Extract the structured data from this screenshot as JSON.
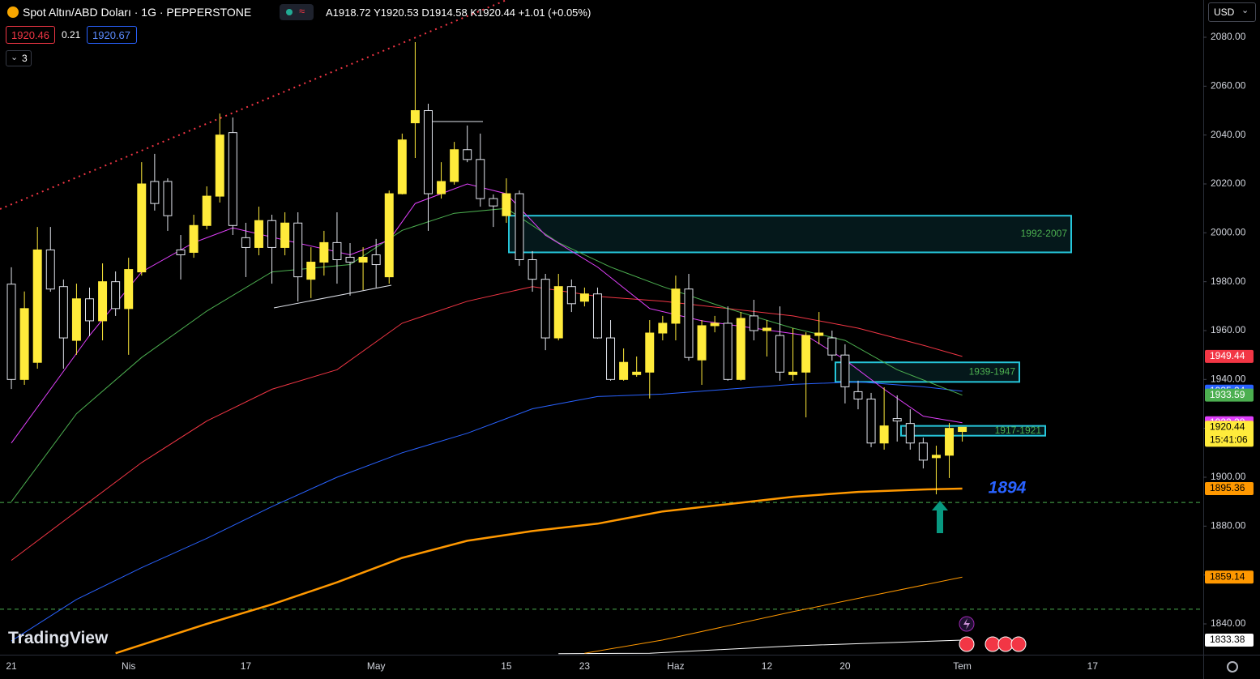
{
  "header": {
    "symbol": "Spot Altın/ABD Doları · 1G · PEPPERSTONE",
    "ohlc_keys": [
      "A",
      "Y",
      "D",
      "K"
    ],
    "change": "+1.01 (+0.05%)",
    "sell": 1920.46,
    "spread": 0.21,
    "buy": 1920.67,
    "indicators": 3,
    "currency": "USD",
    "watermark": "TradingView"
  },
  "chart_data": {
    "type": "candlestick",
    "categories": [
      "21",
      null,
      null,
      null,
      null,
      null,
      null,
      null,
      null,
      "Nis",
      null,
      null,
      null,
      null,
      null,
      null,
      null,
      null,
      "17",
      null,
      null,
      null,
      null,
      null,
      null,
      null,
      null,
      null,
      "May",
      null,
      null,
      null,
      null,
      null,
      null,
      null,
      null,
      null,
      "15",
      null,
      null,
      null,
      null,
      null,
      "23",
      null,
      null,
      null,
      null,
      null,
      null,
      "Haz",
      null,
      null,
      null,
      null,
      null,
      null,
      "12",
      null,
      null,
      null,
      null,
      null,
      "20",
      null,
      null,
      null,
      null,
      null,
      null,
      null,
      null,
      "Tem",
      null,
      null,
      null,
      null,
      null,
      null,
      null,
      null,
      null,
      "17",
      null,
      null,
      null,
      null,
      null,
      null,
      null,
      null
    ],
    "open": [
      1979,
      1940,
      1947,
      1993,
      1978,
      1956,
      1973,
      1964,
      1980,
      1969,
      1984,
      2021,
      2021,
      1993,
      1992,
      2003,
      2015,
      2041,
      1998,
      1994,
      2005,
      1994,
      2004,
      1981,
      1988,
      1996,
      1990,
      1988,
      1991,
      1982,
      2016,
      2045,
      2050,
      2016,
      2021,
      2034,
      2030,
      2014,
      2007,
      2016,
      1989,
      1981,
      1957,
      1978,
      1972,
      1975,
      1957,
      1940,
      1942,
      1943,
      1959,
      1963,
      1977,
      1948,
      1962,
      1963,
      1940,
      1966,
      1960,
      1958,
      1942,
      1943,
      1958,
      1957,
      1950,
      1935,
      1932,
      1914,
      1924,
      1922,
      1914,
      1908,
      1909,
      1918.72,
      null,
      null,
      null,
      null,
      null,
      null,
      null,
      null,
      null,
      null,
      null,
      null,
      null,
      null,
      null,
      null,
      null,
      null
    ],
    "high": [
      1985.9,
      1976,
      2002.4,
      2002.4,
      1980.9,
      1979.2,
      1977.6,
      1987.5,
      1984.2,
      1989.8,
      2028.9,
      2032.3,
      2022.3,
      1999.1,
      2007.4,
      2019,
      2048.8,
      2047.2,
      2004.1,
      2010.7,
      2007.4,
      2008.4,
      2008.4,
      1994.1,
      2000.8,
      2008.4,
      1995.8,
      1994.1,
      1997.5,
      2017.3,
      2040.6,
      2078,
      2052.8,
      2028.9,
      2037.2,
      2043.9,
      2040.6,
      2015.7,
      2022.3,
      2017.3,
      1992.5,
      1983.2,
      1983.2,
      1980.9,
      1977.6,
      1977.6,
      1964.3,
      1952.7,
      1949.4,
      1964.3,
      1966,
      1982.5,
      1983.2,
      1964.3,
      1966,
      1969.9,
      1967.6,
      1972.6,
      1964.3,
      1969.9,
      1961,
      1959.3,
      1967.6,
      1960,
      1954.4,
      1939.5,
      1934.5,
      1936.8,
      1933.5,
      1927.8,
      1916.2,
      1912.9,
      1922.2,
      1920.53,
      null,
      null,
      null,
      null,
      null,
      null,
      null,
      null,
      null,
      null,
      null,
      null,
      null,
      null,
      null,
      null,
      null,
      null
    ],
    "low": [
      1936.1,
      1937.8,
      1944.4,
      1975.9,
      1944.4,
      1950.1,
      1957.7,
      1956,
      1966,
      1950.1,
      1982.5,
      2009.1,
      2000.8,
      1980.9,
      1989.8,
      2001.4,
      2012.4,
      1999.1,
      1981.9,
      1990.8,
      1979.2,
      1990.8,
      1971.9,
      1973.3,
      1982.5,
      1979.2,
      1974.3,
      1976.6,
      1977.6,
      1979.2,
      2015.7,
      2030.6,
      2000.8,
      2014,
      2019.7,
      2028.9,
      2010.7,
      2002.4,
      2004.1,
      1986.5,
      1975.9,
      1952,
      1956,
      1967.6,
      1969.9,
      1956.7,
      1939.5,
      1939.5,
      1941.1,
      1932.2,
      1956,
      1956,
      1947.7,
      1937.8,
      1959.3,
      1939.5,
      1939.5,
      1956,
      1949.4,
      1939.5,
      1939.5,
      1924.5,
      1954.4,
      1947.7,
      1930.2,
      1927.8,
      1912.3,
      1911.3,
      1914.6,
      1911.3,
      1903.6,
      1893,
      1899.7,
      1914.58,
      null,
      null,
      null,
      null,
      null,
      null,
      null,
      null,
      null,
      null,
      null,
      null,
      null,
      null,
      null,
      null,
      null,
      null
    ],
    "close": [
      1940,
      1969,
      1993,
      1977,
      1957,
      1973,
      1964,
      1980,
      1969,
      1985,
      2020,
      2012,
      2007,
      1991,
      2003,
      2015,
      2040,
      2003,
      1994,
      2005,
      1994,
      2004,
      1982,
      1988,
      1996,
      1989,
      1988,
      1990,
      1987,
      2016,
      2038,
      2050,
      2016,
      2021,
      2034,
      2030,
      2014,
      2011,
      2016,
      1989,
      1981,
      1957,
      1978,
      1971,
      1975,
      1957,
      1940,
      1947,
      1943,
      1959,
      1963,
      1977,
      1949,
      1962,
      1963,
      1940,
      1965,
      1960,
      1961,
      1943,
      1943,
      1958,
      1959,
      1950,
      1937,
      1932,
      1914,
      1921,
      1923,
      1914,
      1907,
      1909,
      1920,
      1920.44,
      null,
      null,
      null,
      null,
      null,
      null,
      null,
      null,
      null,
      null,
      null,
      null,
      null,
      null,
      null,
      null,
      null,
      null
    ],
    "up_color": "#ffeb3b",
    "down_color": "#000000",
    "down_border": "#e0e3eb",
    "price_tag_color": "#ffeb3b",
    "countdown": "15:41:06",
    "ylim": [
      1827.4,
      2095.25
    ],
    "yticks": [
      {
        "value": 1840,
        "label": "1840.00"
      },
      {
        "value": 1860,
        "label": "1860.00"
      },
      {
        "value": 1880,
        "label": "1880.00"
      },
      {
        "value": 1900,
        "label": "1900.00"
      },
      {
        "value": 1920,
        "label": "1920.00"
      },
      {
        "value": 1940,
        "label": "1940.00"
      },
      {
        "value": 1960,
        "label": "1960.00"
      },
      {
        "value": 1980,
        "label": "1980.00"
      },
      {
        "value": 2000,
        "label": "2000.00"
      },
      {
        "value": 2020,
        "label": "2020.00"
      },
      {
        "value": 2040,
        "label": "2040.00"
      },
      {
        "value": 2060,
        "label": "2060.00"
      },
      {
        "value": 2080,
        "label": "2080.00"
      }
    ],
    "lines": [
      {
        "color": "#ffffff",
        "width": 1,
        "x": [
          42,
          49,
          60,
          73
        ],
        "values": [
          1827.8,
          1828,
          1831,
          1833.38
        ]
      },
      {
        "color": "#ff9800",
        "width": 1,
        "x": [
          44,
          50,
          60,
          73
        ],
        "values": [
          1828,
          1833.4,
          1845,
          1859.14
        ]
      },
      {
        "color": "#ff9800",
        "width": 2.5,
        "x": [
          8,
          15,
          20,
          25,
          30,
          35,
          40,
          45,
          50,
          55,
          60,
          65,
          70,
          73
        ],
        "values": [
          1828,
          1840,
          1848,
          1857,
          1867,
          1874,
          1878,
          1881,
          1886,
          1889,
          1892,
          1894,
          1895,
          1895.36
        ]
      },
      {
        "color": "#2962ff",
        "width": 1,
        "x": [
          0,
          5,
          10,
          15,
          20,
          25,
          30,
          35,
          40,
          45,
          50,
          55,
          60,
          65,
          70,
          73
        ],
        "values": [
          1833,
          1850,
          1863,
          1875,
          1888,
          1900,
          1910,
          1918,
          1928,
          1933,
          1934,
          1936,
          1938,
          1939,
          1937,
          1935.24
        ]
      },
      {
        "color": "#f23645",
        "width": 1,
        "x": [
          0,
          5,
          10,
          15,
          20,
          25,
          30,
          35,
          40,
          45,
          50,
          55,
          60,
          65,
          70,
          73
        ],
        "values": [
          1866,
          1886,
          1906,
          1923,
          1936,
          1944,
          1963,
          1972,
          1978,
          1974,
          1972,
          1969,
          1966,
          1961,
          1954,
          1949.44
        ]
      },
      {
        "color": "#4caf50",
        "width": 1,
        "x": [
          0,
          5,
          10,
          15,
          20,
          26,
          30,
          34,
          38,
          42,
          46,
          50,
          55,
          60,
          64,
          68,
          73
        ],
        "values": [
          1890,
          1926,
          1949,
          1968,
          1984,
          1987,
          2001,
          2008,
          2010,
          1996,
          1986,
          1978,
          1969,
          1961,
          1956,
          1944,
          1933.59
        ]
      },
      {
        "color": "#e040fb",
        "width": 1,
        "x": [
          0,
          6,
          10,
          14,
          17,
          21,
          26,
          29,
          31,
          35,
          38,
          41,
          45,
          49,
          53,
          57,
          61,
          64,
          67,
          70,
          73
        ],
        "values": [
          1914,
          1958,
          1984,
          1996,
          2002,
          1997,
          1991,
          1997,
          2012,
          2020,
          2016,
          1999,
          1986,
          1969,
          1964,
          1961,
          1958,
          1948,
          1936,
          1925,
          1922.28
        ]
      }
    ],
    "zones": [
      {
        "label": "1992-2007",
        "low": 1992,
        "high": 2007,
        "color": "#26c6da"
      },
      {
        "label": "1939-1947",
        "low": 1939,
        "high": 1947,
        "color": "#26c6da"
      },
      {
        "label": "1917-1921",
        "low": 1917,
        "high": 1921,
        "color": "#26c6da"
      }
    ],
    "hlines": [
      1889.7,
      1846
    ],
    "annotation": {
      "text": "1894",
      "color": "#2962ff"
    }
  }
}
